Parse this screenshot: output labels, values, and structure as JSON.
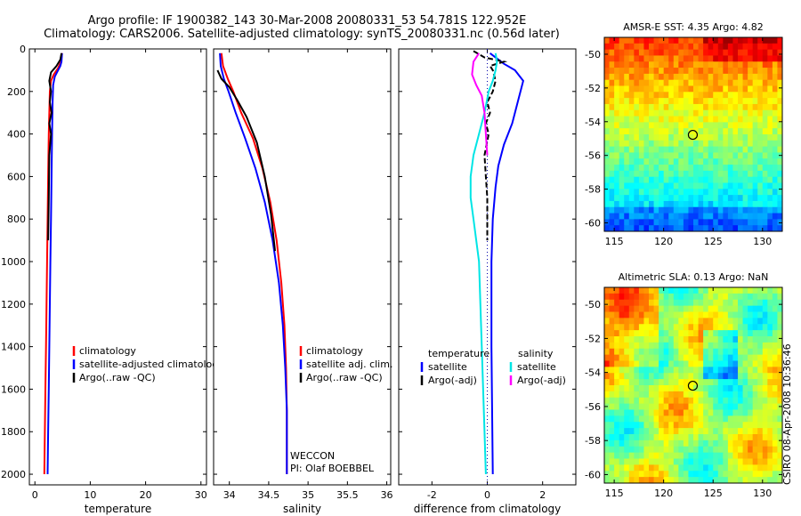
{
  "header": {
    "line1": "Argo profile: IF 1900382_143 30-Mar-2008 20080331_53 54.781S 122.952E",
    "line2": "Climatology: CARS2006. Satellite-adjusted climatology: synTS_20080331.nc (0.56d later)"
  },
  "side_stamp": "CSIRO 08-Apr-2008 10:36:46",
  "colors": {
    "climatology": "#ff0000",
    "satellite": "#0000ff",
    "argo": "#000000",
    "sal_satellite": "#00e5e5",
    "sal_argo": "#ff00ff"
  },
  "chart_data": [
    {
      "id": "temperature",
      "type": "line",
      "xlabel": "temperature",
      "xlim": [
        -1,
        31
      ],
      "xticks": [
        0,
        10,
        20,
        30
      ],
      "ylim": [
        2050,
        0
      ],
      "yticks": [
        0,
        200,
        400,
        600,
        800,
        1000,
        1200,
        1400,
        1600,
        1800,
        2000
      ],
      "legend": [
        "climatology",
        "satellite-adjusted climatology",
        "Argo(..raw -QC)"
      ],
      "series": [
        {
          "name": "climatology",
          "color": "#ff0000",
          "points": [
            [
              4.9,
              20
            ],
            [
              4.7,
              60
            ],
            [
              4.2,
              90
            ],
            [
              3.4,
              120
            ],
            [
              2.9,
              150
            ],
            [
              2.7,
              200
            ],
            [
              2.6,
              300
            ],
            [
              2.5,
              400
            ],
            [
              2.4,
              600
            ],
            [
              2.3,
              800
            ],
            [
              2.2,
              1000
            ],
            [
              2.1,
              1200
            ],
            [
              2.0,
              1400
            ],
            [
              1.9,
              1600
            ],
            [
              1.8,
              1800
            ],
            [
              1.7,
              2000
            ]
          ]
        },
        {
          "name": "satellite-adjusted climatology",
          "color": "#0000ff",
          "points": [
            [
              4.9,
              20
            ],
            [
              4.8,
              60
            ],
            [
              4.6,
              80
            ],
            [
              4.2,
              100
            ],
            [
              3.6,
              130
            ],
            [
              3.3,
              170
            ],
            [
              3.2,
              250
            ],
            [
              3.1,
              400
            ],
            [
              3.0,
              600
            ],
            [
              2.9,
              800
            ],
            [
              2.8,
              1000
            ],
            [
              2.7,
              1200
            ],
            [
              2.6,
              1400
            ],
            [
              2.5,
              1600
            ],
            [
              2.4,
              1800
            ],
            [
              2.3,
              2000
            ]
          ]
        },
        {
          "name": "Argo(..raw -QC)",
          "color": "#000000",
          "points": [
            [
              4.8,
              20
            ],
            [
              4.6,
              50
            ],
            [
              3.9,
              80
            ],
            [
              2.9,
              110
            ],
            [
              2.6,
              150
            ],
            [
              2.9,
              200
            ],
            [
              2.7,
              250
            ],
            [
              3.0,
              300
            ],
            [
              2.6,
              350
            ],
            [
              2.9,
              400
            ],
            [
              2.6,
              500
            ],
            [
              2.5,
              700
            ],
            [
              2.4,
              900
            ]
          ]
        }
      ]
    },
    {
      "id": "salinity",
      "type": "line",
      "xlabel": "salinity",
      "xlim": [
        33.8,
        36.05
      ],
      "xticks": [
        34,
        34.5,
        35,
        35.5,
        36
      ],
      "ylim": [
        2050,
        0
      ],
      "legend": [
        "climatology",
        "satellite adj. clim.",
        "Argo(..raw -QC)"
      ],
      "annotation": [
        "WECCON",
        "PI: Olaf BOEBBEL"
      ],
      "series": [
        {
          "name": "climatology",
          "color": "#ff0000",
          "points": [
            [
              33.9,
              20
            ],
            [
              33.92,
              80
            ],
            [
              33.98,
              140
            ],
            [
              34.05,
              200
            ],
            [
              34.15,
              300
            ],
            [
              34.3,
              420
            ],
            [
              34.42,
              560
            ],
            [
              34.52,
              720
            ],
            [
              34.6,
              900
            ],
            [
              34.66,
              1100
            ],
            [
              34.7,
              1300
            ],
            [
              34.72,
              1500
            ],
            [
              34.73,
              1700
            ],
            [
              34.73,
              2000
            ]
          ]
        },
        {
          "name": "satellite adj. clim.",
          "color": "#0000ff",
          "points": [
            [
              33.88,
              20
            ],
            [
              33.89,
              80
            ],
            [
              33.93,
              140
            ],
            [
              33.99,
              200
            ],
            [
              34.08,
              300
            ],
            [
              34.2,
              420
            ],
            [
              34.33,
              560
            ],
            [
              34.45,
              720
            ],
            [
              34.55,
              900
            ],
            [
              34.63,
              1100
            ],
            [
              34.68,
              1300
            ],
            [
              34.71,
              1500
            ],
            [
              34.73,
              1700
            ],
            [
              34.73,
              2000
            ]
          ]
        },
        {
          "name": "Argo(..raw -QC)",
          "color": "#000000",
          "points": [
            [
              33.85,
              100
            ],
            [
              33.9,
              140
            ],
            [
              34.0,
              180
            ],
            [
              34.1,
              240
            ],
            [
              34.22,
              320
            ],
            [
              34.35,
              440
            ],
            [
              34.45,
              600
            ],
            [
              34.53,
              780
            ],
            [
              34.58,
              950
            ]
          ]
        }
      ]
    },
    {
      "id": "difference",
      "type": "line",
      "xlabel": "difference from climatology",
      "xlim": [
        -3.2,
        3.2
      ],
      "xticks": [
        -2,
        0,
        2
      ],
      "ylim": [
        2050,
        0
      ],
      "legend": {
        "temperature_header": "temperature",
        "salinity_header": "salinity",
        "left": [
          "satellite",
          "Argo(-adj)"
        ],
        "right": [
          "satellite",
          "Argo(-adj)"
        ]
      },
      "series": [
        {
          "name": "temperature satellite",
          "color": "#0000ff",
          "points": [
            [
              0.1,
              20
            ],
            [
              0.3,
              40
            ],
            [
              0.6,
              70
            ],
            [
              1.0,
              100
            ],
            [
              1.3,
              150
            ],
            [
              1.1,
              250
            ],
            [
              0.9,
              350
            ],
            [
              0.6,
              450
            ],
            [
              0.4,
              550
            ],
            [
              0.3,
              650
            ],
            [
              0.2,
              800
            ],
            [
              0.15,
              1000
            ],
            [
              0.15,
              1400
            ],
            [
              0.2,
              2000
            ]
          ]
        },
        {
          "name": "temperature Argo(-adj)",
          "color": "#000000",
          "points": [
            [
              -0.5,
              10
            ],
            [
              -0.1,
              40
            ],
            [
              0.6,
              60
            ],
            [
              0.1,
              80
            ],
            [
              0.2,
              100
            ],
            [
              0.3,
              150
            ],
            [
              0.2,
              200
            ],
            [
              0.0,
              250
            ],
            [
              0.1,
              300
            ],
            [
              -0.05,
              350
            ],
            [
              0.05,
              400
            ],
            [
              -0.1,
              500
            ],
            [
              -0.05,
              600
            ],
            [
              0.0,
              700
            ],
            [
              0.0,
              900
            ]
          ]
        },
        {
          "name": "salinity satellite",
          "color": "#00e5e5",
          "points": [
            [
              0.3,
              20
            ],
            [
              0.35,
              60
            ],
            [
              0.3,
              100
            ],
            [
              0.2,
              150
            ],
            [
              0.05,
              200
            ],
            [
              -0.1,
              300
            ],
            [
              -0.3,
              400
            ],
            [
              -0.5,
              500
            ],
            [
              -0.6,
              600
            ],
            [
              -0.6,
              700
            ],
            [
              -0.5,
              800
            ],
            [
              -0.3,
              1000
            ],
            [
              -0.2,
              1400
            ],
            [
              -0.1,
              1800
            ],
            [
              -0.05,
              2000
            ]
          ]
        },
        {
          "name": "salinity Argo(-adj)",
          "color": "#ff00ff",
          "points": [
            [
              -0.3,
              20
            ],
            [
              -0.5,
              60
            ],
            [
              -0.55,
              120
            ],
            [
              -0.4,
              170
            ],
            [
              -0.2,
              220
            ],
            [
              -0.1,
              300
            ],
            [
              -0.05,
              400
            ],
            [
              0.0,
              500
            ]
          ]
        }
      ]
    },
    {
      "id": "sst-map",
      "type": "heatmap",
      "title": "AMSR-E SST: 4.35 Argo: 4.82",
      "xlim": [
        114,
        132
      ],
      "xticks": [
        115,
        120,
        125,
        130
      ],
      "ylim": [
        -60.5,
        -49
      ],
      "yticks": [
        -50,
        -52,
        -54,
        -56,
        -58,
        -60
      ],
      "marker": [
        122.95,
        -54.78
      ]
    },
    {
      "id": "sla-map",
      "type": "heatmap",
      "title": "Altimetric SLA: 0.13 Argo: NaN",
      "xlim": [
        114,
        132
      ],
      "xticks": [
        115,
        120,
        125,
        130
      ],
      "ylim": [
        -60.5,
        -49
      ],
      "yticks": [
        -50,
        -52,
        -54,
        -56,
        -58,
        -60
      ],
      "marker": [
        122.95,
        -54.78
      ]
    }
  ]
}
